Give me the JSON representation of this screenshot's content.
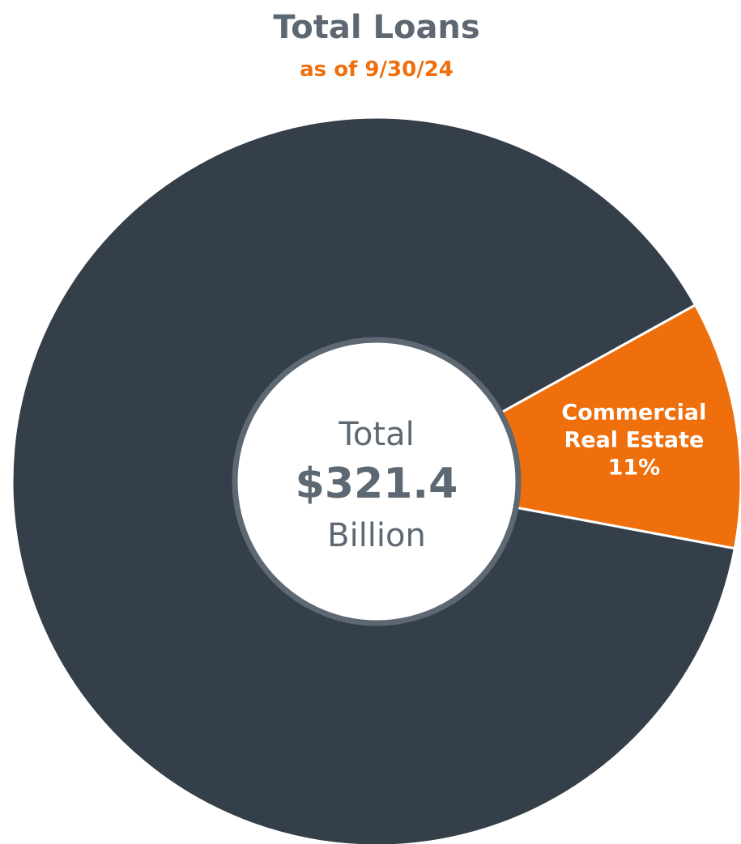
{
  "chart_data": {
    "type": "pie",
    "title": "Total Loans",
    "subtitle": "as of 9/30/24",
    "center_label": {
      "top": "Total",
      "value": "$321.4",
      "bottom": "Billion"
    },
    "slices": [
      {
        "label_lines": [
          "Commercial",
          "Real Estate",
          "11%"
        ],
        "value": 11,
        "color": "#ee6f0c"
      },
      {
        "value": 89,
        "color": "#343f49"
      }
    ]
  },
  "colors": {
    "title": "#5d6873",
    "subtitle": "#ee6f0c",
    "center_border": "#5d6873",
    "center_fill": "#ffffff"
  }
}
